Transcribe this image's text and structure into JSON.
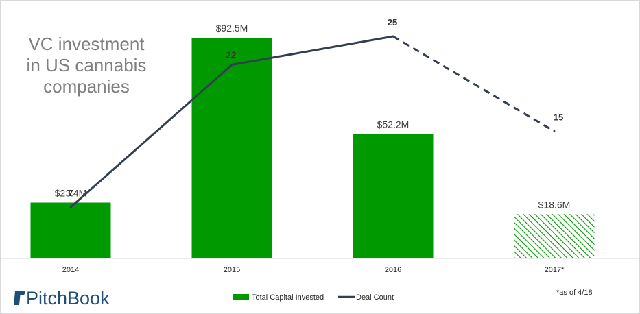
{
  "chart_data": {
    "type": "bar",
    "title": [
      "VC investment",
      "in US cannabis",
      "companies"
    ],
    "categories": [
      "2014",
      "2015",
      "2016",
      "2017*"
    ],
    "series": [
      {
        "name": "Total Capital Invested",
        "kind": "bar",
        "values": [
          23.4,
          92.5,
          52.2,
          18.6
        ],
        "labels": [
          "$23.4M",
          "$92.5M",
          "$52.2M",
          "$18.6M"
        ],
        "color": "#009900",
        "partial_last": true
      },
      {
        "name": "Deal Count",
        "kind": "line",
        "values": [
          7,
          22,
          25,
          15
        ],
        "labels": [
          "7",
          "22",
          "25",
          "15"
        ],
        "color": "#333f50",
        "dashed_last_segment": true
      }
    ],
    "bar_axis_range": [
      0,
      92.5
    ],
    "line_axis_range": [
      0,
      25
    ],
    "legend_position": "bottom",
    "grid": false,
    "note": "*as of 4/18"
  },
  "brand": {
    "name": "PitchBook",
    "color": "#1f4e79"
  }
}
